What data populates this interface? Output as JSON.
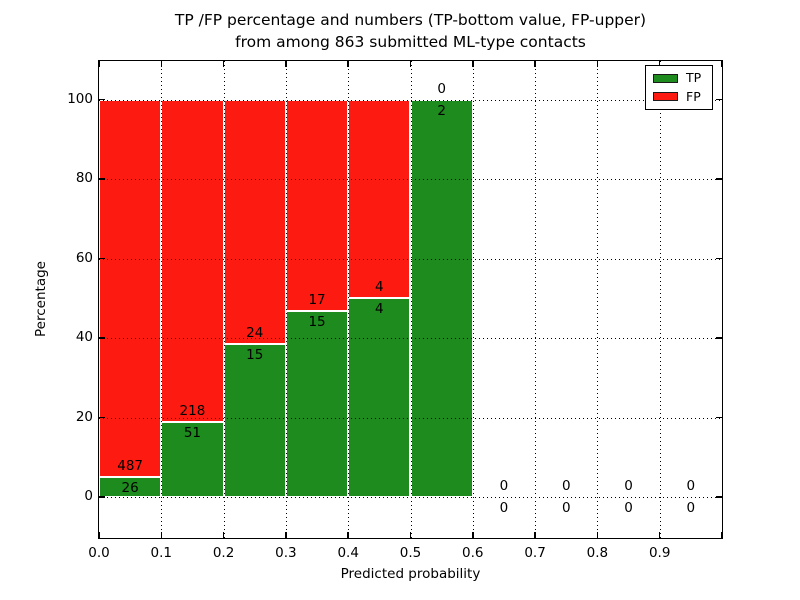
{
  "chart_data": {
    "type": "bar",
    "stacked": true,
    "title_lines": [
      "TP /FP percentage and numbers (TP-bottom value, FP-upper)",
      "from among 863 submitted ML-type contacts"
    ],
    "total_contacts": 863,
    "xlabel": "Predicted probability",
    "ylabel": "Percentage",
    "xlim": [
      0.0,
      1.0
    ],
    "ylim": [
      -10.3,
      109.7
    ],
    "x_ticks": [
      "0.0",
      "0.1",
      "0.2",
      "0.3",
      "0.4",
      "0.5",
      "0.6",
      "0.7",
      "0.8",
      "0.9"
    ],
    "y_ticks": [
      0,
      20,
      40,
      60,
      80,
      100
    ],
    "grid_style": "dotted",
    "legend_position": "upper-right",
    "colors": {
      "tp": "#1e8b1e",
      "fp": "#fd1b11"
    },
    "legend": [
      {
        "label": "TP",
        "color": "#1e8b1e"
      },
      {
        "label": "FP",
        "color": "#fd1b11"
      }
    ],
    "bins": [
      {
        "range": [
          0.0,
          0.1
        ],
        "tp": 26,
        "fp": 487,
        "tp_pct": 5.07,
        "fp_pct": 94.93
      },
      {
        "range": [
          0.1,
          0.2
        ],
        "tp": 51,
        "fp": 218,
        "tp_pct": 18.96,
        "fp_pct": 81.04
      },
      {
        "range": [
          0.2,
          0.3
        ],
        "tp": 15,
        "fp": 24,
        "tp_pct": 38.46,
        "fp_pct": 61.54
      },
      {
        "range": [
          0.3,
          0.4
        ],
        "tp": 15,
        "fp": 17,
        "tp_pct": 46.88,
        "fp_pct": 53.12
      },
      {
        "range": [
          0.4,
          0.5
        ],
        "tp": 4,
        "fp": 4,
        "tp_pct": 50.0,
        "fp_pct": 50.0
      },
      {
        "range": [
          0.5,
          0.6
        ],
        "tp": 2,
        "fp": 0,
        "tp_pct": 100.0,
        "fp_pct": 0.0
      },
      {
        "range": [
          0.6,
          0.7
        ],
        "tp": 0,
        "fp": 0,
        "tp_pct": 0.0,
        "fp_pct": 0.0
      },
      {
        "range": [
          0.7,
          0.8
        ],
        "tp": 0,
        "fp": 0,
        "tp_pct": 0.0,
        "fp_pct": 0.0
      },
      {
        "range": [
          0.8,
          0.9
        ],
        "tp": 0,
        "fp": 0,
        "tp_pct": 0.0,
        "fp_pct": 0.0
      },
      {
        "range": [
          0.9,
          1.0
        ],
        "tp": 0,
        "fp": 0,
        "tp_pct": 0.0,
        "fp_pct": 0.0
      }
    ]
  }
}
